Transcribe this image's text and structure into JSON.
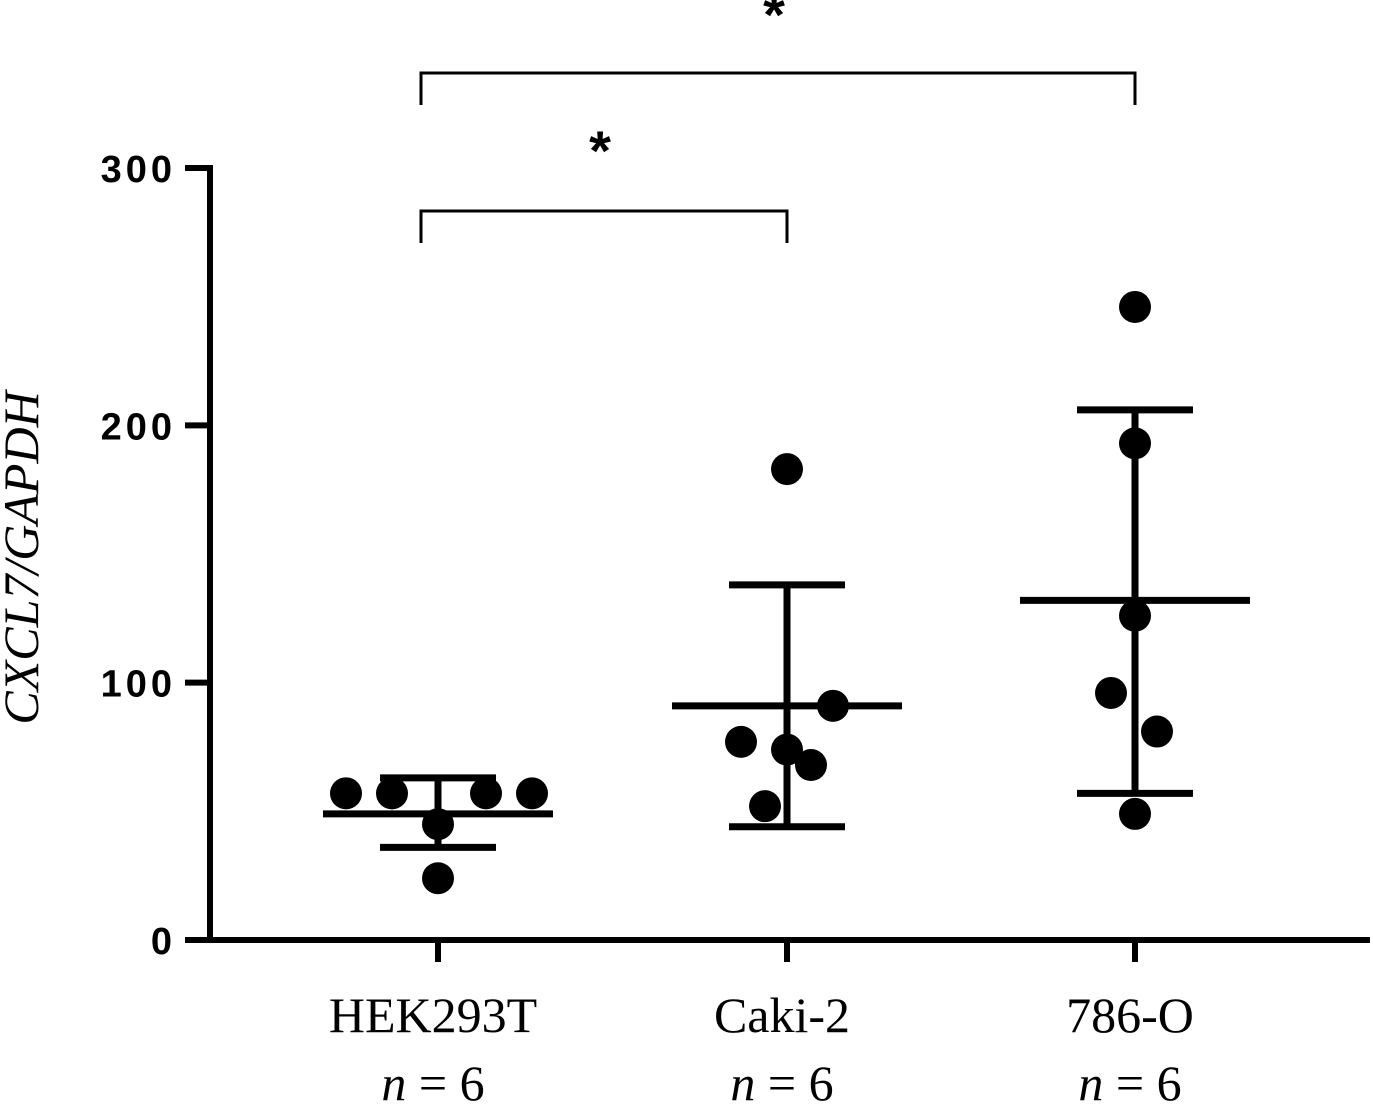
{
  "chart_data": {
    "type": "scatter",
    "ylabel": "CXCL7/GAPDH",
    "ylim": [
      0,
      300
    ],
    "yticks": [
      0,
      100,
      200,
      300
    ],
    "grid": false,
    "groups": [
      {
        "name": "HEK293T",
        "n_label": "n = 6",
        "n_var": "n",
        "n_rest": " = 6",
        "points": [
          57,
          57,
          57,
          57,
          45,
          24
        ],
        "mean": 49,
        "sd_low": 36,
        "sd_high": 63
      },
      {
        "name": "Caki-2",
        "n_label": "n = 6",
        "n_var": "n",
        "n_rest": " = 6",
        "points": [
          183,
          91,
          77,
          74,
          68,
          52
        ],
        "mean": 91,
        "sd_low": 44,
        "sd_high": 138
      },
      {
        "name": "786-O",
        "n_label": "n = 6",
        "n_var": "n",
        "n_rest": " = 6",
        "points": [
          246,
          193,
          126,
          96,
          81,
          49
        ],
        "mean": 132,
        "sd_low": 57,
        "sd_high": 206
      }
    ],
    "comparisons": [
      {
        "from": 0,
        "to": 1,
        "label": "*"
      },
      {
        "from": 0,
        "to": 2,
        "label": "*"
      }
    ]
  }
}
